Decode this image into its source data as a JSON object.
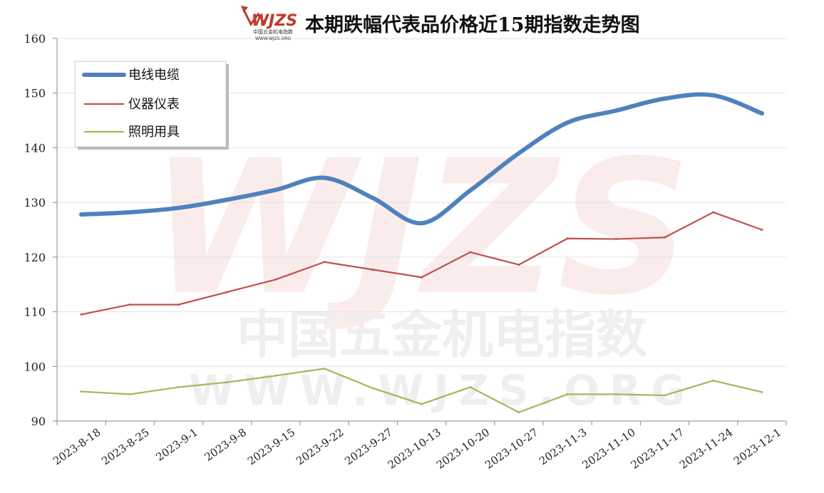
{
  "header": {
    "logo_text": "WJZS",
    "logo_subtext": "中国五金机电指数",
    "logo_url": "WWW.WJZS.ORG"
  },
  "watermark": {
    "logo": "WJZS",
    "line1": "中国五金机电指数",
    "line2": "WWW.WJZS.ORG"
  },
  "chart_data": {
    "type": "line",
    "title": "本期跌幅代表品价格近15期指数走势图",
    "categories": [
      "2023-8-18",
      "2023-8-25",
      "2023-9-1",
      "2023-9-8",
      "2023-9-15",
      "2023-9-22",
      "2023-9-27",
      "2023-10-13",
      "2023-10-20",
      "2023-10-27",
      "2023-11-3",
      "2023-11-10",
      "2023-11-17",
      "2023-11-24",
      "2023-12-1"
    ],
    "y_ticks": [
      "90",
      "100",
      "110",
      "120",
      "130",
      "140",
      "150",
      "160"
    ],
    "ylim": [
      90,
      160
    ],
    "grid": true,
    "legend_position": "top-left",
    "series": [
      {
        "name": "电线电缆",
        "color": "#4f81bd",
        "smooth": true,
        "values": [
          127.8,
          128.2,
          129.0,
          130.5,
          132.3,
          134.5,
          130.8,
          126.2,
          132.2,
          139.0,
          144.6,
          146.8,
          149.0,
          149.6,
          146.3
        ]
      },
      {
        "name": "仪器仪表",
        "color": "#c0504d",
        "smooth": false,
        "values": [
          109.5,
          111.3,
          111.3,
          113.6,
          115.9,
          119.1,
          117.7,
          116.3,
          120.9,
          118.6,
          123.4,
          123.3,
          123.6,
          128.2,
          125.0
        ]
      },
      {
        "name": "照明用具",
        "color": "#9bbb59",
        "smooth": false,
        "values": [
          95.4,
          94.9,
          96.2,
          97.1,
          98.3,
          99.6,
          96.0,
          93.1,
          96.2,
          91.6,
          94.9,
          94.9,
          94.7,
          97.4,
          95.3
        ]
      }
    ]
  }
}
